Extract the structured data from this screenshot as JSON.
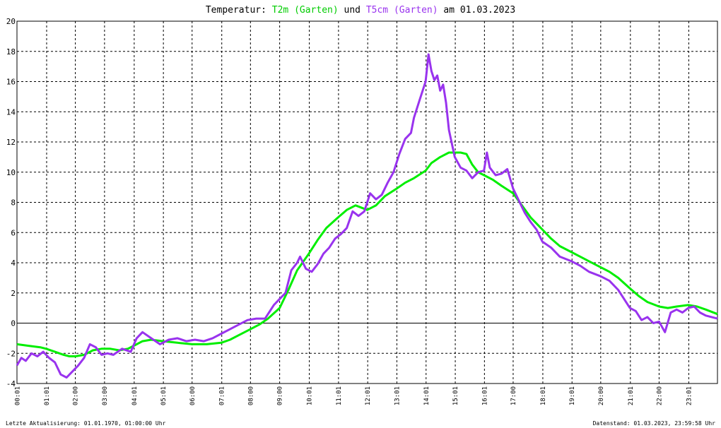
{
  "title": {
    "prefix": "Temperatur: ",
    "series1": "T2m (Garten)",
    "mid": " und ",
    "series2": "T5cm (Garten)",
    "suffix": " am 01.03.2023"
  },
  "footer": {
    "left": "Letzte Aktualisierung: 01.01.1970, 01:00:00 Uhr",
    "right": "Datenstand: 01.03.2023, 23:59:58 Uhr"
  },
  "colors": {
    "t2m": "#00ee00",
    "t5cm": "#9933ee",
    "grid": "#000000"
  },
  "chart_data": {
    "type": "line",
    "title": "Temperatur: T2m (Garten) und T5cm (Garten) am 01.03.2023",
    "xlim": [
      0,
      24
    ],
    "ylim": [
      -4,
      20
    ],
    "y_ticks": [
      -4,
      -2,
      0,
      2,
      4,
      6,
      8,
      10,
      12,
      14,
      16,
      18,
      20
    ],
    "x_ticks": [
      {
        "hour": 0.0167,
        "label": "00:01"
      },
      {
        "hour": 1.0167,
        "label": "01:01"
      },
      {
        "hour": 2.0,
        "label": "02:00"
      },
      {
        "hour": 3.0,
        "label": "03:00"
      },
      {
        "hour": 4.0167,
        "label": "04:01"
      },
      {
        "hour": 5.0167,
        "label": "05:01"
      },
      {
        "hour": 6.0,
        "label": "06:00"
      },
      {
        "hour": 7.0167,
        "label": "07:01"
      },
      {
        "hour": 8.0,
        "label": "08:00"
      },
      {
        "hour": 9.0,
        "label": "09:00"
      },
      {
        "hour": 10.0167,
        "label": "10:01"
      },
      {
        "hour": 11.0167,
        "label": "11:01"
      },
      {
        "hour": 12.0167,
        "label": "12:01"
      },
      {
        "hour": 13.0167,
        "label": "13:01"
      },
      {
        "hour": 14.0167,
        "label": "14:01"
      },
      {
        "hour": 15.0167,
        "label": "15:01"
      },
      {
        "hour": 16.0167,
        "label": "16:01"
      },
      {
        "hour": 17.0,
        "label": "17:00"
      },
      {
        "hour": 18.0167,
        "label": "18:01"
      },
      {
        "hour": 19.0167,
        "label": "19:01"
      },
      {
        "hour": 20.0,
        "label": "20:00"
      },
      {
        "hour": 21.0167,
        "label": "21:01"
      },
      {
        "hour": 22.0,
        "label": "22:00"
      },
      {
        "hour": 23.0167,
        "label": "23:01"
      }
    ],
    "grid": true,
    "series": [
      {
        "name": "T2m (Garten)",
        "x": [
          0,
          0.4,
          0.8,
          1.0,
          1.3,
          1.6,
          1.8,
          2.0,
          2.3,
          2.6,
          2.9,
          3.2,
          3.5,
          3.8,
          4.0,
          4.3,
          4.6,
          5.0,
          5.5,
          6.0,
          6.5,
          7.0,
          7.3,
          7.6,
          8.0,
          8.3,
          8.6,
          9.0,
          9.3,
          9.6,
          10.0,
          10.3,
          10.6,
          11.0,
          11.3,
          11.6,
          12.0,
          12.3,
          12.6,
          13.0,
          13.3,
          13.6,
          14.0,
          14.2,
          14.5,
          14.8,
          15.0,
          15.2,
          15.4,
          15.6,
          15.8,
          16.0,
          16.3,
          16.6,
          17.0,
          17.3,
          17.6,
          18.0,
          18.3,
          18.6,
          19.0,
          19.3,
          19.6,
          20.0,
          20.3,
          20.6,
          21.0,
          21.3,
          21.6,
          22.0,
          22.3,
          22.6,
          23.0,
          23.3,
          23.6,
          24.0
        ],
        "y": [
          -1.4,
          -1.5,
          -1.6,
          -1.7,
          -1.9,
          -2.1,
          -2.2,
          -2.2,
          -2.1,
          -1.8,
          -1.7,
          -1.7,
          -1.8,
          -1.7,
          -1.5,
          -1.2,
          -1.1,
          -1.2,
          -1.3,
          -1.4,
          -1.4,
          -1.3,
          -1.1,
          -0.8,
          -0.4,
          -0.1,
          0.3,
          1.0,
          2.2,
          3.5,
          4.6,
          5.5,
          6.3,
          7.0,
          7.5,
          7.8,
          7.5,
          7.8,
          8.4,
          8.9,
          9.3,
          9.6,
          10.1,
          10.6,
          11.0,
          11.3,
          11.3,
          11.3,
          11.2,
          10.5,
          10.0,
          9.8,
          9.5,
          9.1,
          8.6,
          7.8,
          7.0,
          6.2,
          5.6,
          5.1,
          4.7,
          4.4,
          4.1,
          3.7,
          3.4,
          3.0,
          2.3,
          1.8,
          1.4,
          1.1,
          1.0,
          1.1,
          1.2,
          1.1,
          0.9,
          0.6
        ]
      },
      {
        "name": "T5cm (Garten)",
        "x": [
          0,
          0.15,
          0.3,
          0.5,
          0.7,
          0.9,
          1.1,
          1.3,
          1.5,
          1.7,
          1.9,
          2.1,
          2.3,
          2.5,
          2.7,
          2.9,
          3.1,
          3.3,
          3.6,
          3.9,
          4.1,
          4.3,
          4.6,
          4.9,
          5.2,
          5.5,
          5.8,
          6.1,
          6.4,
          6.7,
          7.0,
          7.3,
          7.6,
          7.9,
          8.2,
          8.5,
          8.8,
          9.0,
          9.2,
          9.4,
          9.6,
          9.7,
          9.9,
          10.1,
          10.3,
          10.5,
          10.7,
          10.9,
          11.1,
          11.3,
          11.5,
          11.7,
          11.9,
          12.1,
          12.3,
          12.5,
          12.7,
          12.9,
          13.1,
          13.3,
          13.5,
          13.6,
          13.8,
          14.0,
          14.1,
          14.2,
          14.3,
          14.4,
          14.5,
          14.6,
          14.7,
          14.8,
          14.9,
          15.0,
          15.2,
          15.4,
          15.6,
          15.8,
          16.0,
          16.1,
          16.2,
          16.4,
          16.6,
          16.8,
          17.0,
          17.2,
          17.4,
          17.6,
          17.8,
          18.0,
          18.3,
          18.6,
          19.0,
          19.3,
          19.6,
          20.0,
          20.3,
          20.6,
          20.8,
          21.0,
          21.2,
          21.4,
          21.6,
          21.8,
          22.0,
          22.2,
          22.4,
          22.6,
          22.8,
          23.0,
          23.2,
          23.4,
          23.6,
          23.8,
          24.0
        ],
        "y": [
          -2.8,
          -2.3,
          -2.5,
          -2.0,
          -2.2,
          -1.9,
          -2.3,
          -2.6,
          -3.4,
          -3.6,
          -3.2,
          -2.8,
          -2.3,
          -1.4,
          -1.6,
          -2.1,
          -2.0,
          -2.1,
          -1.7,
          -1.9,
          -1.0,
          -0.6,
          -1.0,
          -1.4,
          -1.1,
          -1.0,
          -1.2,
          -1.1,
          -1.2,
          -1.0,
          -0.7,
          -0.4,
          -0.1,
          0.2,
          0.3,
          0.3,
          1.2,
          1.6,
          2.0,
          3.5,
          4.0,
          4.4,
          3.6,
          3.4,
          3.9,
          4.6,
          5.0,
          5.6,
          5.9,
          6.3,
          7.4,
          7.1,
          7.4,
          8.6,
          8.2,
          8.5,
          9.3,
          10.0,
          11.2,
          12.2,
          12.6,
          13.6,
          14.8,
          16.0,
          17.8,
          16.7,
          16.1,
          16.4,
          15.4,
          15.8,
          14.6,
          12.8,
          11.9,
          11.0,
          10.3,
          10.1,
          9.6,
          10.0,
          10.1,
          11.3,
          10.3,
          9.8,
          9.9,
          10.2,
          8.9,
          8.1,
          7.3,
          6.7,
          6.2,
          5.4,
          5.0,
          4.4,
          4.1,
          3.8,
          3.4,
          3.1,
          2.8,
          2.2,
          1.6,
          1.0,
          0.8,
          0.2,
          0.4,
          0.0,
          0.1,
          -0.6,
          0.7,
          0.9,
          0.7,
          1.0,
          1.1,
          0.7,
          0.5,
          0.4,
          0.3
        ]
      }
    ]
  }
}
